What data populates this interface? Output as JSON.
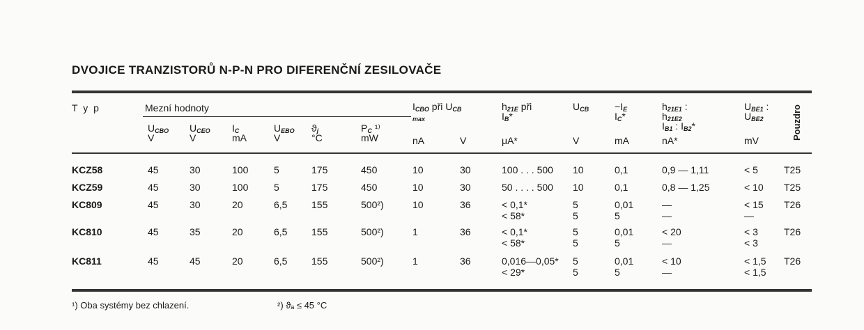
{
  "title": "DVOJICE TRANZISTORŮ N-P-N PRO DIFERENČNÍ ZESILOVAČE",
  "header": {
    "typ": "T y p",
    "group_label": "Mezní hodnoty",
    "pouzdro": "Pouzdro",
    "columns": [
      {
        "lines": [
          [
            {
              "t": "U",
              "s": "CBO"
            }
          ],
          [
            {
              "t": "V"
            }
          ]
        ]
      },
      {
        "lines": [
          [
            {
              "t": "U",
              "s": "CEO"
            }
          ],
          [
            {
              "t": "V"
            }
          ]
        ]
      },
      {
        "lines": [
          [
            {
              "t": "I",
              "s": "C"
            }
          ],
          [
            {
              "t": "mA"
            }
          ]
        ]
      },
      {
        "lines": [
          [
            {
              "t": "U",
              "s": "EBO"
            }
          ],
          [
            {
              "t": "V"
            }
          ]
        ]
      },
      {
        "lines": [
          [
            {
              "t": "ϑ",
              "s": "j"
            }
          ],
          [
            {
              "t": "°C"
            }
          ]
        ]
      },
      {
        "lines": [
          [
            {
              "t": "P",
              "s": "C"
            },
            {
              "t": " ¹⁾"
            }
          ],
          [
            {
              "t": "mW"
            }
          ]
        ]
      },
      {
        "lines": [
          [
            {
              "t": "I",
              "s": "CBO"
            },
            {
              "t": " při U",
              "s": "CB"
            }
          ],
          [
            {
              "t": "",
              "s": "max"
            }
          ]
        ],
        "unit": "nA"
      },
      {
        "lines": [],
        "unit": "V"
      },
      {
        "lines": [
          [
            {
              "t": "h",
              "s": "21E"
            },
            {
              "t": "   při"
            }
          ],
          [
            {
              "t": "I",
              "s": "B"
            },
            {
              "t": "*"
            }
          ]
        ],
        "unit": "μA*"
      },
      {
        "lines": [
          [
            {
              "t": "U",
              "s": "CB"
            }
          ]
        ],
        "unit": "V"
      },
      {
        "lines": [
          [
            {
              "t": "−I",
              "s": "E"
            }
          ],
          [
            {
              "t": "I",
              "s": "C"
            },
            {
              "t": "*"
            }
          ]
        ],
        "unit": "mA"
      },
      {
        "lines": [
          [
            {
              "t": "h",
              "s": "21E1"
            },
            {
              "t": " :"
            }
          ],
          [
            {
              "t": "h",
              "s": "21E2"
            }
          ],
          [
            {
              "t": "I",
              "s": "B1"
            },
            {
              "t": " : I",
              "s": "B2"
            },
            {
              "t": "*"
            }
          ]
        ],
        "unit": "nA*"
      },
      {
        "lines": [
          [
            {
              "t": "U",
              "s": "BE1"
            },
            {
              "t": " :"
            }
          ],
          [
            {
              "t": "U",
              "s": "BE2"
            }
          ]
        ],
        "unit": "mV"
      }
    ]
  },
  "rows": [
    {
      "typ": "KCZ58",
      "cells": [
        [
          "45"
        ],
        [
          "30"
        ],
        [
          "100"
        ],
        [
          "5"
        ],
        [
          "175"
        ],
        [
          "450"
        ],
        [
          "10"
        ],
        [
          "30"
        ],
        [
          "100 . . . 500"
        ],
        [
          "10"
        ],
        [
          "0,1"
        ],
        [
          "0,9 — 1,11"
        ],
        [
          "< 5"
        ],
        [
          "T25"
        ]
      ]
    },
    {
      "typ": "KCZ59",
      "cells": [
        [
          "45"
        ],
        [
          "30"
        ],
        [
          "100"
        ],
        [
          "5"
        ],
        [
          "175"
        ],
        [
          "450"
        ],
        [
          "10"
        ],
        [
          "30"
        ],
        [
          "50 . . . . 500"
        ],
        [
          "10"
        ],
        [
          "0,1"
        ],
        [
          "0,8 — 1,25"
        ],
        [
          "< 10"
        ],
        [
          "T25"
        ]
      ]
    },
    {
      "typ": "KC809",
      "cells": [
        [
          "45"
        ],
        [
          "30"
        ],
        [
          "20"
        ],
        [
          "6,5"
        ],
        [
          "155"
        ],
        [
          "500²)"
        ],
        [
          "10"
        ],
        [
          "36"
        ],
        [
          "< 0,1*",
          "< 58*"
        ],
        [
          "5",
          "5"
        ],
        [
          "0,01",
          "5"
        ],
        [
          "   —",
          "   —"
        ],
        [
          "< 15",
          "   —"
        ],
        [
          "T26"
        ]
      ]
    },
    {
      "typ": "KC810",
      "cells": [
        [
          "45"
        ],
        [
          "35"
        ],
        [
          "20"
        ],
        [
          "6,5"
        ],
        [
          "155"
        ],
        [
          "500²)"
        ],
        [
          "1"
        ],
        [
          "36"
        ],
        [
          "< 0,1*",
          "< 58*"
        ],
        [
          "5",
          "5"
        ],
        [
          "0,01",
          "5"
        ],
        [
          "  < 20",
          "   —"
        ],
        [
          "< 3",
          "< 3"
        ],
        [
          "T26"
        ]
      ]
    },
    {
      "typ": "KC811",
      "cells": [
        [
          "45"
        ],
        [
          "45"
        ],
        [
          "20"
        ],
        [
          "6,5"
        ],
        [
          "155"
        ],
        [
          "500²)"
        ],
        [
          "1"
        ],
        [
          "36"
        ],
        [
          "0,016—0,05*",
          "< 29*"
        ],
        [
          "5",
          "5"
        ],
        [
          "0,01",
          "5"
        ],
        [
          "  < 10",
          "   —"
        ],
        [
          "< 1,5",
          "< 1,5"
        ],
        [
          "T26"
        ]
      ]
    }
  ],
  "footnotes": {
    "note1": "¹) Oba systémy bez chlazení.",
    "note2": "²) ϑₐ ≤ 45 °C"
  }
}
